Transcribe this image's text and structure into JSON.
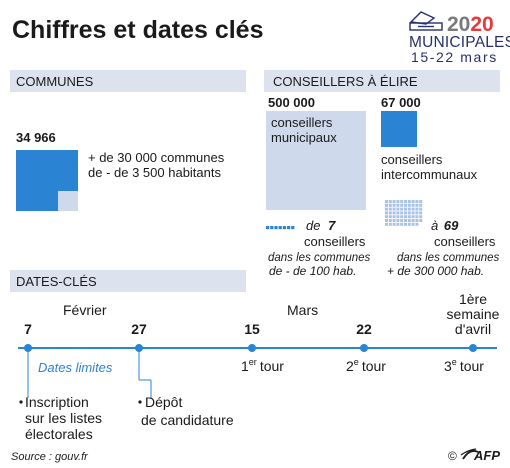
{
  "title": "Chiffres et dates clés",
  "logo": {
    "year_prefix": "20",
    "year_suffix": "20",
    "name": "MUNICIPALES",
    "dates": "15-22 mars",
    "icon": "ballot-box-icon",
    "colors": {
      "navy": "#27306b",
      "red": "#e63a3a"
    }
  },
  "colors": {
    "band": "#dce3ee",
    "blue": "#2b83d4",
    "light_blue": "#cfd9ec",
    "pale_blue": "#a9c3e6",
    "text": "#1a1a1a",
    "timeline": "#2b83d4"
  },
  "communes": {
    "header": "COMMUNES",
    "count": "34 966",
    "desc_line1": "+ de 30 000 communes",
    "desc_line2": "de - de 3 500 habitants",
    "small_share": 0.86
  },
  "conseillers": {
    "header": "CONSEILLERS À ÉLIRE",
    "municipaux": {
      "count": "500 000",
      "line1": "conseillers",
      "line2": "municipaux"
    },
    "intercommunaux": {
      "count": "67 000",
      "line1": "conseillers",
      "line2": "intercommunaux"
    },
    "small": {
      "prefix": "de",
      "count": "7",
      "label": "conseillers",
      "sub1": "dans les communes",
      "sub2": "de - de 100 hab."
    },
    "large": {
      "prefix": "à",
      "count": "69",
      "label": "conseillers",
      "sub1": "dans les communes",
      "sub2": "+ de 300 000 hab."
    }
  },
  "dates": {
    "header": "DATES-CLÉS",
    "months": {
      "feb": "Février",
      "mar": "Mars"
    },
    "ticks": [
      {
        "label": "7"
      },
      {
        "label": "27"
      },
      {
        "label": "15"
      },
      {
        "label": "22"
      },
      {
        "label_line1": "1ère",
        "label_line2": "semaine",
        "label_line3": "d'avril"
      }
    ],
    "dates_limites": "Dates limites",
    "tours": [
      {
        "num": "1",
        "sup": "er",
        "word": "tour"
      },
      {
        "num": "2",
        "sup": "e",
        "word": "tour"
      },
      {
        "num": "3",
        "sup": "e",
        "word": "tour"
      }
    ],
    "inscription": [
      "Inscription",
      "sur les listes",
      "électorales"
    ],
    "depot": [
      "Dépôt",
      "de candidature"
    ]
  },
  "footer": {
    "source": "Source : gouv.fr",
    "copyright": "©",
    "agency": "AFP"
  }
}
